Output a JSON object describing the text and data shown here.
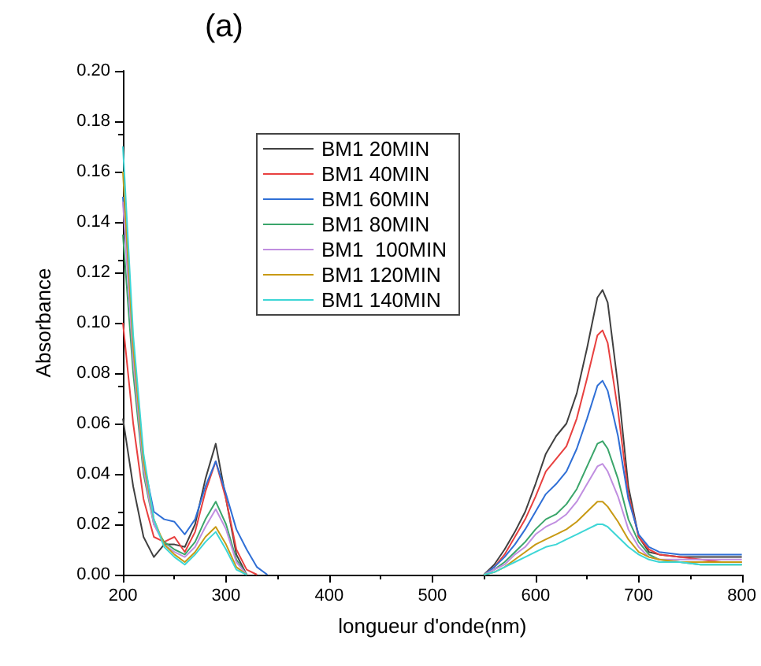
{
  "chart_data": {
    "type": "line",
    "title": "(a)",
    "xlabel": "longueur d'onde(nm)",
    "ylabel": "Absorbance",
    "x": [
      200,
      210,
      220,
      230,
      240,
      250,
      260,
      270,
      280,
      290,
      300,
      310,
      320,
      330,
      340,
      445,
      550,
      560,
      570,
      580,
      590,
      600,
      610,
      620,
      630,
      640,
      650,
      660,
      665,
      670,
      680,
      690,
      700,
      710,
      720,
      740,
      760,
      780,
      800
    ],
    "series": [
      {
        "name": "BM1 20MIN",
        "color": "#404040",
        "values": [
          0.062,
          0.035,
          0.015,
          0.007,
          0.012,
          0.012,
          0.011,
          0.02,
          0.038,
          0.052,
          0.03,
          0.008,
          0,
          null,
          null,
          null,
          0,
          0.004,
          0.01,
          0.017,
          0.025,
          0.036,
          0.048,
          0.055,
          0.06,
          0.072,
          0.09,
          0.11,
          0.113,
          0.108,
          0.075,
          0.035,
          0.015,
          0.009,
          0.008,
          0.007,
          0.007,
          0.007,
          0.007
        ]
      },
      {
        "name": "BM1 40MIN",
        "color": "#e8403f",
        "values": [
          0.1,
          0.06,
          0.03,
          0.015,
          0.013,
          0.015,
          0.009,
          0.017,
          0.033,
          0.045,
          0.03,
          0.01,
          0.002,
          0,
          null,
          null,
          0,
          0.003,
          0.008,
          0.015,
          0.022,
          0.031,
          0.041,
          0.046,
          0.051,
          0.062,
          0.078,
          0.095,
          0.097,
          0.092,
          0.065,
          0.032,
          0.015,
          0.01,
          0.008,
          0.007,
          0.006,
          0.005,
          0.005
        ]
      },
      {
        "name": "BM1 60MIN",
        "color": "#2f6fd6",
        "values": [
          0.15,
          0.09,
          0.045,
          0.025,
          0.022,
          0.021,
          0.016,
          0.022,
          0.035,
          0.045,
          0.032,
          0.018,
          0.01,
          0.003,
          0,
          null,
          0,
          0.003,
          0.007,
          0.012,
          0.018,
          0.025,
          0.032,
          0.036,
          0.041,
          0.05,
          0.062,
          0.075,
          0.077,
          0.073,
          0.055,
          0.03,
          0.016,
          0.011,
          0.009,
          0.008,
          0.008,
          0.008,
          0.008
        ]
      },
      {
        "name": "BM1 80MIN",
        "color": "#3aa56a",
        "values": [
          0.135,
          0.08,
          0.04,
          0.02,
          0.013,
          0.01,
          0.008,
          0.013,
          0.022,
          0.029,
          0.02,
          0.006,
          0,
          null,
          null,
          null,
          0,
          0.002,
          0.005,
          0.009,
          0.013,
          0.018,
          0.022,
          0.024,
          0.028,
          0.034,
          0.043,
          0.052,
          0.053,
          0.05,
          0.038,
          0.022,
          0.013,
          0.008,
          0.006,
          0.005,
          0.004,
          0.004,
          0.004
        ]
      },
      {
        "name": "BM1  100MIN",
        "color": "#c08ee0",
        "values": [
          0.148,
          0.085,
          0.042,
          0.02,
          0.012,
          0.009,
          0.007,
          0.011,
          0.019,
          0.026,
          0.018,
          0.005,
          0,
          null,
          null,
          null,
          0,
          0.002,
          0.004,
          0.008,
          0.011,
          0.016,
          0.019,
          0.021,
          0.024,
          0.029,
          0.036,
          0.043,
          0.044,
          0.041,
          0.031,
          0.018,
          0.011,
          0.007,
          0.006,
          0.006,
          0.006,
          0.006,
          0.006
        ]
      },
      {
        "name": "BM1 120MIN",
        "color": "#c89a14",
        "values": [
          0.16,
          0.09,
          0.045,
          0.022,
          0.012,
          0.008,
          0.005,
          0.009,
          0.015,
          0.019,
          0.012,
          0.003,
          0,
          null,
          null,
          null,
          0,
          0.001,
          0.003,
          0.006,
          0.009,
          0.012,
          0.014,
          0.016,
          0.018,
          0.021,
          0.025,
          0.029,
          0.029,
          0.027,
          0.021,
          0.014,
          0.009,
          0.007,
          0.006,
          0.005,
          0.005,
          0.005,
          0.005
        ]
      },
      {
        "name": "BM1 140MIN",
        "color": "#3dd6d6",
        "values": [
          0.17,
          0.095,
          0.048,
          0.022,
          0.011,
          0.007,
          0.004,
          0.008,
          0.013,
          0.017,
          0.01,
          0.002,
          0,
          null,
          null,
          null,
          0,
          0.001,
          0.003,
          0.005,
          0.007,
          0.009,
          0.011,
          0.012,
          0.014,
          0.016,
          0.018,
          0.02,
          0.02,
          0.019,
          0.015,
          0.011,
          0.008,
          0.006,
          0.005,
          0.005,
          0.004,
          0.004,
          0.004
        ]
      }
    ],
    "xlim": [
      200,
      800
    ],
    "xticks": [
      200,
      300,
      400,
      500,
      600,
      700,
      800
    ],
    "ylim": [
      0,
      0.2
    ],
    "yticks": [
      {
        "value": 0,
        "label": "0.00"
      },
      {
        "value": 0.02,
        "label": "0.02"
      },
      {
        "value": 0.04,
        "label": "0.04"
      },
      {
        "value": 0.06,
        "label": "0.06"
      },
      {
        "value": 0.08,
        "label": "0.08"
      },
      {
        "value": 0.1,
        "label": "0.10"
      },
      {
        "value": 0.12,
        "label": "0.12"
      },
      {
        "value": 0.14,
        "label": "0.14"
      },
      {
        "value": 0.16,
        "label": "0.16"
      },
      {
        "value": 0.18,
        "label": "0.18"
      },
      {
        "value": 0.2,
        "label": "0.20"
      }
    ],
    "grid": false,
    "legend": "top",
    "marker": "none",
    "line_style": "solid"
  }
}
